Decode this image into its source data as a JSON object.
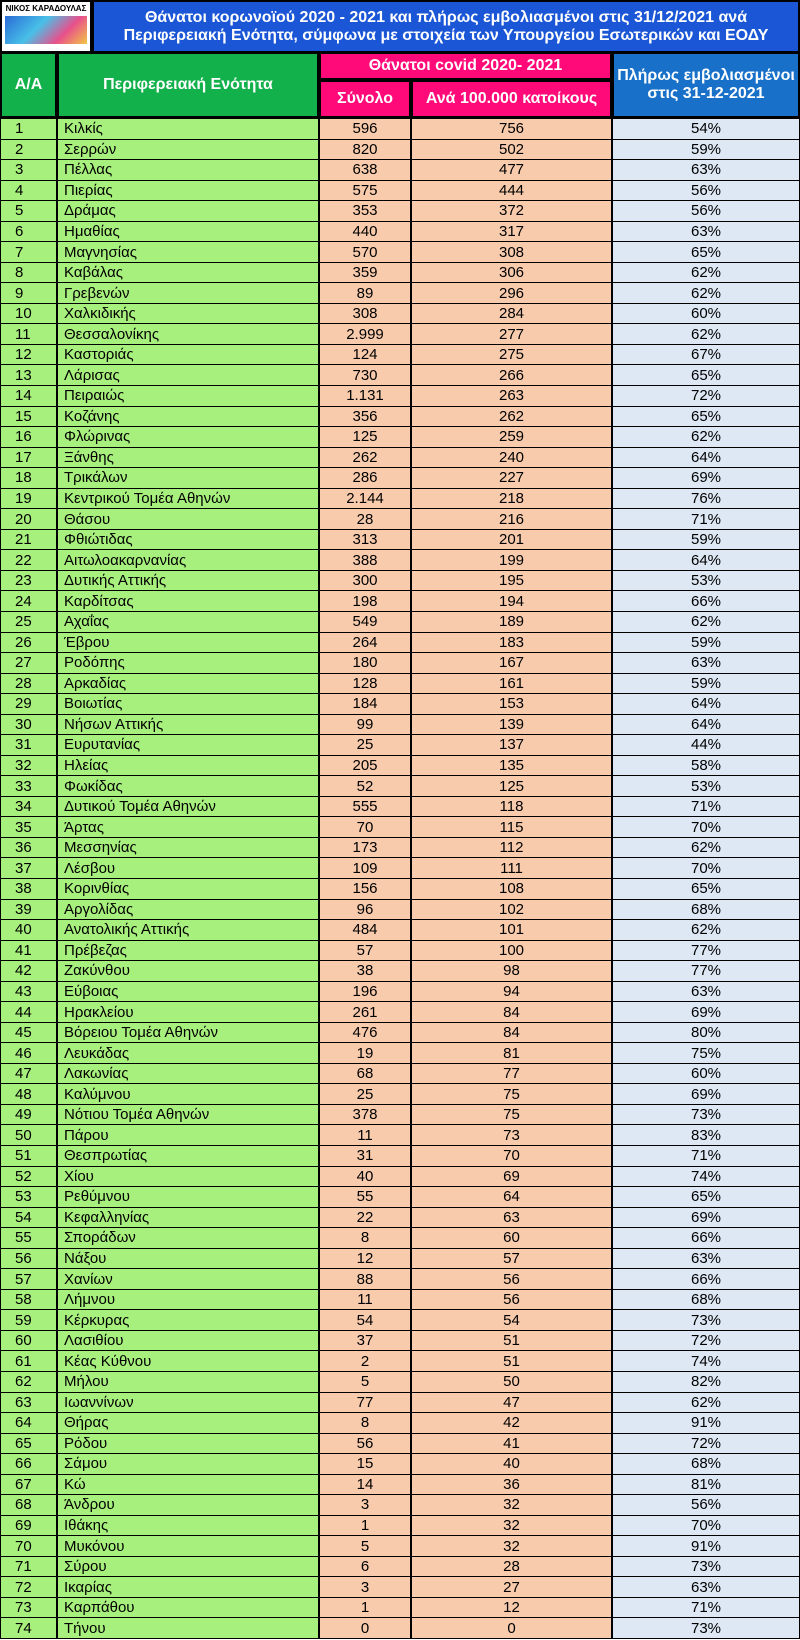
{
  "header": {
    "logo": "ΝΙΚΟΣ ΚΑΡΑΔΟΥΛΑΣ",
    "title_lines": [
      "Θάνατοι κορωνοϊού 2020 - 2021 και πλήρως εμβολιασμένοι στις 31/12/2021 ανά",
      "Περιφερειακή Ενότητα, σύμφωνα με στοιχεία των Υπουργείου Εσωτερικών και ΕΟΔΥ"
    ]
  },
  "table": {
    "columns": {
      "aa": "Α/Α",
      "region": "Περιφερειακή Ενότητα",
      "deaths_group": "Θάνατοι covid 2020- 2021",
      "total": "Σύνολο",
      "per100k": "Ανά 100.000 κατοίκους",
      "vaccinated": "Πλήρως εμβολιασμένοι στις 31-12-2021"
    },
    "rows": [
      [
        "1",
        "Κιλκίς",
        "596",
        "756",
        "54%"
      ],
      [
        "2",
        "Σερρών",
        "820",
        "502",
        "59%"
      ],
      [
        "3",
        "Πέλλας",
        "638",
        "477",
        "63%"
      ],
      [
        "4",
        "Πιερίας",
        "575",
        "444",
        "56%"
      ],
      [
        "5",
        "Δράμας",
        "353",
        "372",
        "56%"
      ],
      [
        "6",
        "Ημαθίας",
        "440",
        "317",
        "63%"
      ],
      [
        "7",
        "Μαγνησίας",
        "570",
        "308",
        "65%"
      ],
      [
        "8",
        "Καβάλας",
        "359",
        "306",
        "62%"
      ],
      [
        "9",
        "Γρεβενών",
        "89",
        "296",
        "62%"
      ],
      [
        "10",
        "Χαλκιδικής",
        "308",
        "284",
        "60%"
      ],
      [
        "11",
        "Θεσσαλονίκης",
        "2.999",
        "277",
        "62%"
      ],
      [
        "12",
        "Καστοριάς",
        "124",
        "275",
        "67%"
      ],
      [
        "13",
        "Λάρισας",
        "730",
        "266",
        "65%"
      ],
      [
        "14",
        "Πειραιώς",
        "1.131",
        "263",
        "72%"
      ],
      [
        "15",
        "Κοζάνης",
        "356",
        "262",
        "65%"
      ],
      [
        "16",
        "Φλώρινας",
        "125",
        "259",
        "62%"
      ],
      [
        "17",
        "Ξάνθης",
        "262",
        "240",
        "64%"
      ],
      [
        "18",
        "Τρικάλων",
        "286",
        "227",
        "69%"
      ],
      [
        "19",
        "Κεντρικού Τομέα Αθηνών",
        "2.144",
        "218",
        "76%"
      ],
      [
        "20",
        "Θάσου",
        "28",
        "216",
        "71%"
      ],
      [
        "21",
        "Φθιώτιδας",
        "313",
        "201",
        "59%"
      ],
      [
        "22",
        "Αιτωλοακαρνανίας",
        "388",
        "199",
        "64%"
      ],
      [
        "23",
        "Δυτικής Αττικής",
        "300",
        "195",
        "53%"
      ],
      [
        "24",
        "Καρδίτσας",
        "198",
        "194",
        "66%"
      ],
      [
        "25",
        "Αχαΐας",
        "549",
        "189",
        "62%"
      ],
      [
        "26",
        "Έβρου",
        "264",
        "183",
        "59%"
      ],
      [
        "27",
        "Ροδόπης",
        "180",
        "167",
        "63%"
      ],
      [
        "28",
        "Αρκαδίας",
        "128",
        "161",
        "59%"
      ],
      [
        "29",
        "Βοιωτίας",
        "184",
        "153",
        "64%"
      ],
      [
        "30",
        "Νήσων Αττικής",
        "99",
        "139",
        "64%"
      ],
      [
        "31",
        "Ευρυτανίας",
        "25",
        "137",
        "44%"
      ],
      [
        "32",
        "Ηλείας",
        "205",
        "135",
        "58%"
      ],
      [
        "33",
        "Φωκίδας",
        "52",
        "125",
        "53%"
      ],
      [
        "34",
        "Δυτικού Τομέα Αθηνών",
        "555",
        "118",
        "71%"
      ],
      [
        "35",
        "Άρτας",
        "70",
        "115",
        "70%"
      ],
      [
        "36",
        "Μεσσηνίας",
        "173",
        "112",
        "62%"
      ],
      [
        "37",
        "Λέσβου",
        "109",
        "111",
        "70%"
      ],
      [
        "38",
        "Κορινθίας",
        "156",
        "108",
        "65%"
      ],
      [
        "39",
        "Αργολίδας",
        "96",
        "102",
        "68%"
      ],
      [
        "40",
        "Ανατολικής Αττικής",
        "484",
        "101",
        "62%"
      ],
      [
        "41",
        "Πρέβεζας",
        "57",
        "100",
        "77%"
      ],
      [
        "42",
        "Ζακύνθου",
        "38",
        "98",
        "77%"
      ],
      [
        "43",
        "Εύβοιας",
        "196",
        "94",
        "63%"
      ],
      [
        "44",
        "Ηρακλείου",
        "261",
        "84",
        "69%"
      ],
      [
        "45",
        "Βόρειου Τομέα Αθηνών",
        "476",
        "84",
        "80%"
      ],
      [
        "46",
        "Λευκάδας",
        "19",
        "81",
        "75%"
      ],
      [
        "47",
        "Λακωνίας",
        "68",
        "77",
        "60%"
      ],
      [
        "48",
        "Καλύμνου",
        "25",
        "75",
        "69%"
      ],
      [
        "49",
        "Νότιου Τομέα Αθηνών",
        "378",
        "75",
        "73%"
      ],
      [
        "50",
        "Πάρου",
        "11",
        "73",
        "83%"
      ],
      [
        "51",
        "Θεσπρωτίας",
        "31",
        "70",
        "71%"
      ],
      [
        "52",
        "Χίου",
        "40",
        "69",
        "74%"
      ],
      [
        "53",
        "Ρεθύμνου",
        "55",
        "64",
        "65%"
      ],
      [
        "54",
        "Κεφαλληνίας",
        "22",
        "63",
        "69%"
      ],
      [
        "55",
        "Σποράδων",
        "8",
        "60",
        "66%"
      ],
      [
        "56",
        "Νάξου",
        "12",
        "57",
        "63%"
      ],
      [
        "57",
        "Χανίων",
        "88",
        "56",
        "66%"
      ],
      [
        "58",
        "Λήμνου",
        "11",
        "56",
        "68%"
      ],
      [
        "59",
        "Κέρκυρας",
        "54",
        "54",
        "73%"
      ],
      [
        "60",
        "Λασιθίου",
        "37",
        "51",
        "72%"
      ],
      [
        "61",
        "Κέας Κύθνου",
        "2",
        "51",
        "74%"
      ],
      [
        "62",
        "Μήλου",
        "5",
        "50",
        "82%"
      ],
      [
        "63",
        "Ιωαννίνων",
        "77",
        "47",
        "62%"
      ],
      [
        "64",
        "Θήρας",
        "8",
        "42",
        "91%"
      ],
      [
        "65",
        "Ρόδου",
        "56",
        "41",
        "72%"
      ],
      [
        "66",
        "Σάμου",
        "15",
        "40",
        "68%"
      ],
      [
        "67",
        "Κώ",
        "14",
        "36",
        "81%"
      ],
      [
        "68",
        "Άνδρου",
        "3",
        "32",
        "56%"
      ],
      [
        "69",
        "Ιθάκης",
        "1",
        "32",
        "70%"
      ],
      [
        "70",
        "Μυκόνου",
        "5",
        "32",
        "91%"
      ],
      [
        "71",
        "Σύρου",
        "6",
        "28",
        "73%"
      ],
      [
        "72",
        "Ικαρίας",
        "3",
        "27",
        "63%"
      ],
      [
        "73",
        "Καρπάθου",
        "1",
        "12",
        "71%"
      ],
      [
        "74",
        "Τήνου",
        "0",
        "0",
        "73%"
      ]
    ]
  }
}
